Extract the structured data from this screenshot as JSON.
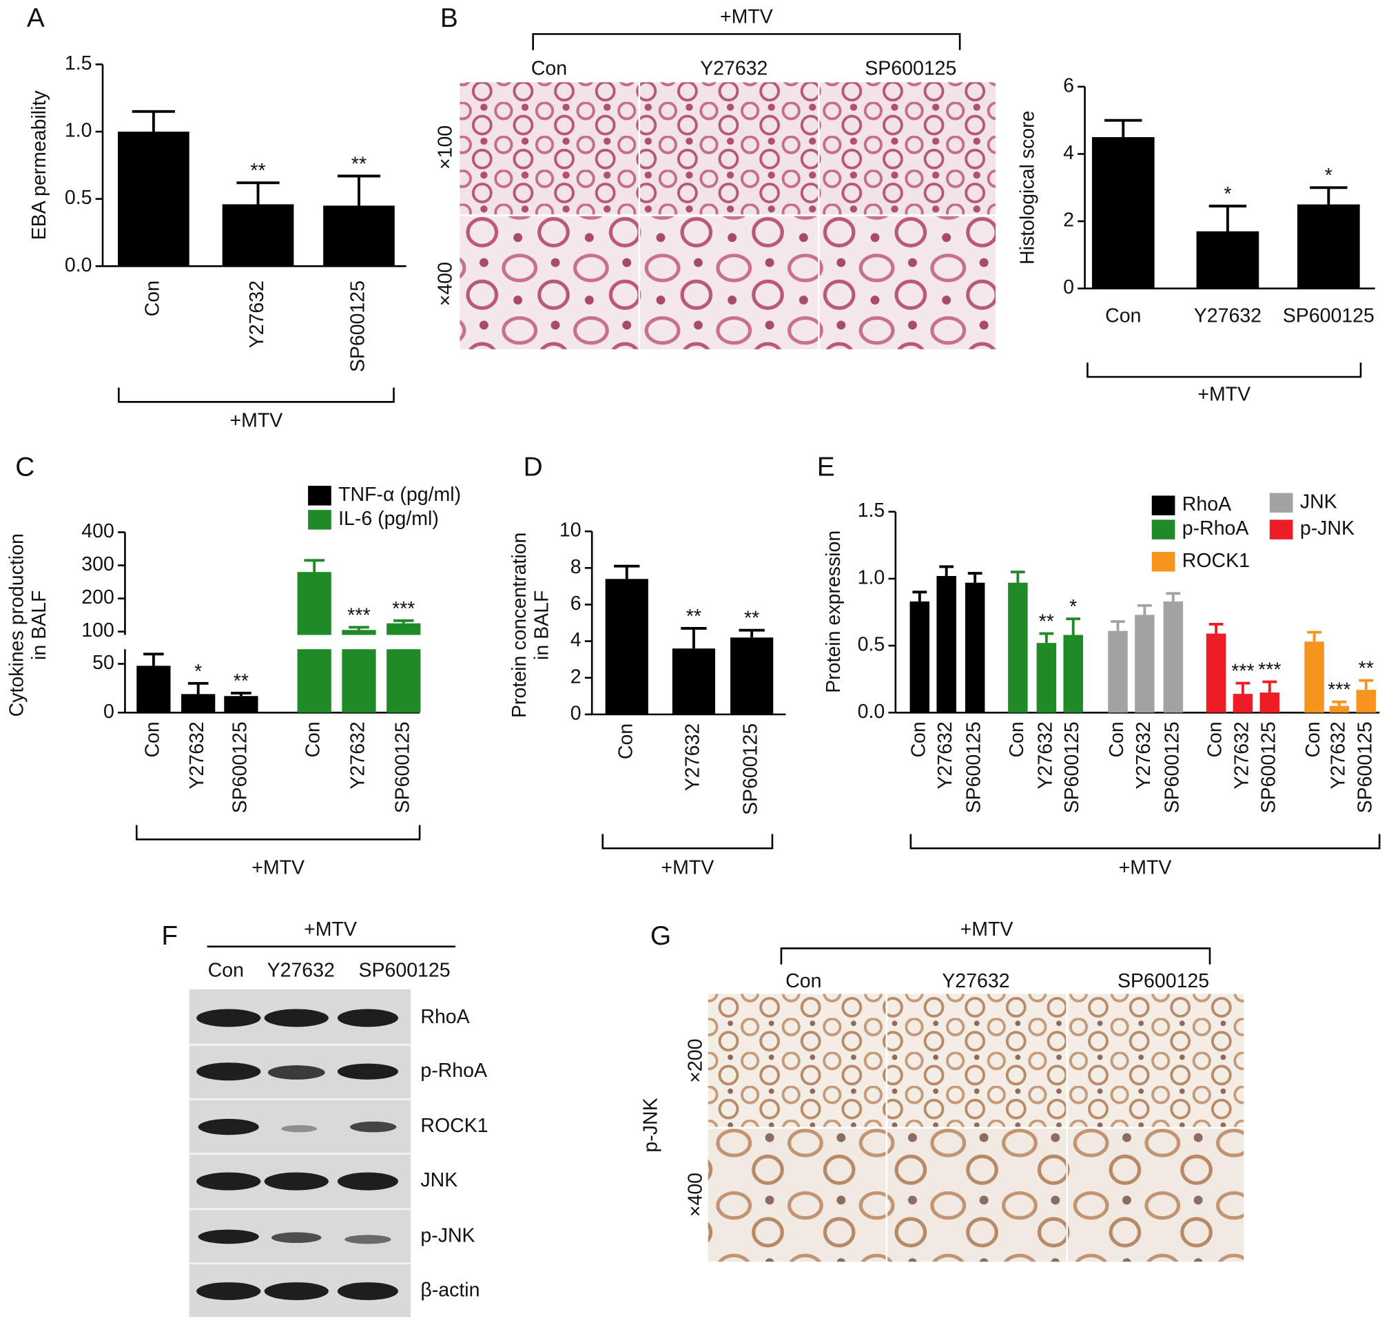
{
  "chart_data": [
    {
      "type": "bar",
      "label": "A",
      "ylabel": [
        "EBA permeability"
      ],
      "group": "+MTV",
      "categories": [
        "Con",
        "Y27632",
        "SP600125"
      ],
      "series": [
        {
          "color": "#000000",
          "values": [
            1.0,
            0.46,
            0.45
          ],
          "errors": [
            0.15,
            0.16,
            0.22
          ],
          "significance": [
            null,
            "**",
            "**"
          ]
        }
      ],
      "ylim": [
        0,
        1.5
      ],
      "yticks": [
        {
          "value": 0,
          "label": "0.0"
        },
        0.5,
        {
          "value": 1.0,
          "label": "1.0"
        },
        1.5
      ]
    },
    {
      "type": "bar",
      "ylabel": [
        "Histological score"
      ],
      "group": "+MTV",
      "categories": [
        "Con",
        "Y27632",
        "SP600125"
      ],
      "series": [
        {
          "color": "#000000",
          "values": [
            4.5,
            1.7,
            2.5
          ],
          "errors": [
            0.5,
            0.75,
            0.5
          ],
          "significance": [
            null,
            "*",
            "*"
          ]
        }
      ],
      "ylim": [
        0,
        6
      ],
      "yticks": [
        0,
        2,
        4,
        6
      ]
    },
    {
      "type": "bar",
      "label": "C",
      "ylabel": [
        "Cytokines production",
        "in BALF"
      ],
      "group": "+MTV",
      "categories": [
        "Con",
        "Y27632",
        "SP600125"
      ],
      "series": [
        {
          "name": "TNF-α (pg/ml)",
          "color": "#000000",
          "values": [
            48,
            19,
            17
          ],
          "errors": [
            12,
            11,
            3
          ],
          "significance": [
            null,
            "*",
            "**"
          ]
        },
        {
          "name": "IL-6 (pg/ml)",
          "color": "#1f8a26",
          "values": [
            280,
            105,
            125
          ],
          "errors": [
            35,
            8,
            8
          ],
          "significance": [
            null,
            "***",
            "***"
          ]
        }
      ],
      "ylim": [
        0,
        400
      ],
      "ybreak": [
        65,
        90
      ],
      "yticks": [
        0,
        50,
        100,
        200,
        300,
        400
      ],
      "legend": "upper right"
    },
    {
      "type": "bar",
      "label": "D",
      "ylabel": [
        "Protein concentration",
        "in BALF"
      ],
      "group": "+MTV",
      "categories": [
        "Con",
        "Y27632",
        "SP600125"
      ],
      "series": [
        {
          "color": "#000000",
          "values": [
            7.4,
            3.6,
            4.2
          ],
          "errors": [
            0.7,
            1.1,
            0.4
          ],
          "significance": [
            null,
            "**",
            "**"
          ]
        }
      ],
      "ylim": [
        0,
        10
      ],
      "yticks": [
        0,
        2,
        4,
        6,
        8,
        10
      ]
    },
    {
      "type": "bar",
      "label": "E",
      "ylabel": [
        "Protein expression"
      ],
      "group": "+MTV",
      "categories": [
        "Con",
        "Y27632",
        "SP600125"
      ],
      "series": [
        {
          "name": "RhoA",
          "color": "#000000",
          "values": [
            0.83,
            1.02,
            0.97
          ],
          "errors": [
            0.07,
            0.07,
            0.07
          ],
          "significance": [
            null,
            null,
            null
          ]
        },
        {
          "name": "p-RhoA",
          "color": "#1f8a26",
          "values": [
            0.97,
            0.52,
            0.58
          ],
          "errors": [
            0.08,
            0.07,
            0.12
          ],
          "significance": [
            null,
            "**",
            "*"
          ]
        },
        {
          "name": "JNK",
          "color": "#a3a3a3",
          "values": [
            0.61,
            0.73,
            0.83
          ],
          "errors": [
            0.07,
            0.07,
            0.06
          ],
          "significance": [
            null,
            null,
            null
          ]
        },
        {
          "name": "p-JNK",
          "color": "#ee1c24",
          "values": [
            0.59,
            0.14,
            0.15
          ],
          "errors": [
            0.07,
            0.08,
            0.08
          ],
          "significance": [
            null,
            "***",
            "***"
          ]
        },
        {
          "name": "ROCK1",
          "color": "#f7941d",
          "values": [
            0.53,
            0.05,
            0.17
          ],
          "errors": [
            0.07,
            0.03,
            0.07
          ],
          "significance": [
            null,
            "***",
            "**"
          ]
        }
      ],
      "ylim": [
        0,
        1.5
      ],
      "yticks": [
        {
          "value": 0,
          "label": "0.0"
        },
        0.5,
        {
          "value": 1.0,
          "label": "1.0"
        },
        1.5
      ],
      "legend": "upper right"
    }
  ],
  "micrographs": {
    "label": "B",
    "group": "+MTV",
    "columns": [
      "Con",
      "Y27632",
      "SP600125"
    ],
    "rows": [
      "×100",
      "×400"
    ]
  },
  "western_blot": {
    "label": "F",
    "group": "+MTV",
    "columns": [
      "Con",
      "Y27632",
      "SP600125"
    ],
    "rows": [
      "RhoA",
      "p-RhoA",
      "ROCK1",
      "JNK",
      "p-JNK",
      "β-actin"
    ]
  },
  "ihc": {
    "label": "G",
    "group": "+MTV",
    "stain": "p-JNK",
    "columns": [
      "Con",
      "Y27632",
      "SP600125"
    ],
    "rows": [
      "×200",
      "×400"
    ]
  }
}
